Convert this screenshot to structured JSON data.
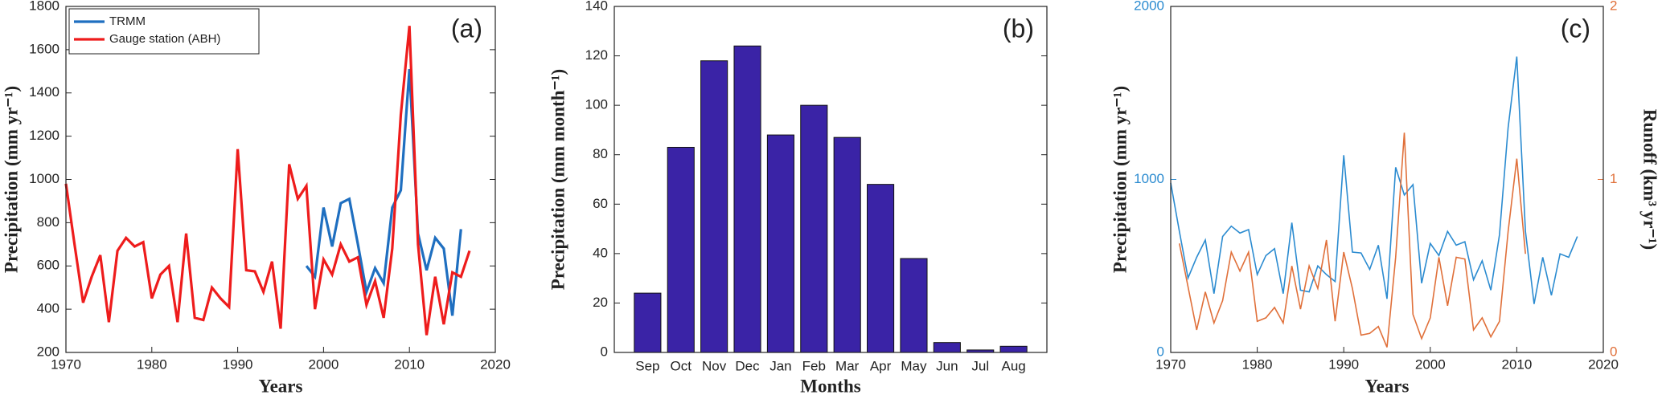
{
  "chart_data": [
    {
      "type": "line",
      "annotation": "(a)",
      "xlabel": "Years",
      "ylabel": "Precipitation (mm yr⁻¹)",
      "x": [
        1970,
        1971,
        1972,
        1973,
        1974,
        1975,
        1976,
        1977,
        1978,
        1979,
        1980,
        1981,
        1982,
        1983,
        1984,
        1985,
        1986,
        1987,
        1988,
        1989,
        1990,
        1991,
        1992,
        1993,
        1994,
        1995,
        1996,
        1997,
        1998,
        1999,
        2000,
        2001,
        2002,
        2003,
        2004,
        2005,
        2006,
        2007,
        2008,
        2009,
        2010,
        2011,
        2012,
        2013,
        2014,
        2015,
        2016,
        2017
      ],
      "series": [
        {
          "name": "TRMM",
          "color": "#1f6fc0",
          "values": [
            null,
            null,
            null,
            null,
            null,
            null,
            null,
            null,
            null,
            null,
            null,
            null,
            null,
            null,
            null,
            null,
            null,
            null,
            null,
            null,
            null,
            null,
            null,
            null,
            null,
            null,
            null,
            null,
            600,
            550,
            870,
            690,
            890,
            910,
            700,
            480,
            590,
            520,
            870,
            950,
            1510,
            750,
            580,
            730,
            680,
            370,
            770,
            null
          ]
        },
        {
          "name": "Gauge station (ABH)",
          "color": "#ee1c1c",
          "values": [
            980,
            700,
            430,
            550,
            650,
            340,
            670,
            730,
            690,
            710,
            450,
            560,
            600,
            340,
            750,
            360,
            350,
            500,
            450,
            410,
            1140,
            580,
            575,
            480,
            620,
            310,
            1070,
            910,
            970,
            400,
            630,
            560,
            700,
            620,
            640,
            420,
            530,
            360,
            680,
            1300,
            1710,
            700,
            280,
            550,
            330,
            570,
            550,
            670
          ]
        }
      ],
      "xlim": [
        1970,
        2020
      ],
      "xticks": [
        1970,
        1980,
        1990,
        2000,
        2010,
        2020
      ],
      "ylim": [
        200,
        1800
      ],
      "yticks": [
        200,
        400,
        600,
        800,
        1000,
        1200,
        1400,
        1600,
        1800
      ],
      "legend": "upper left"
    },
    {
      "type": "bar",
      "annotation": "(b)",
      "xlabel": "Months",
      "ylabel": "Precipitation (mm month⁻¹)",
      "categories": [
        "Sep",
        "Oct",
        "Nov",
        "Dec",
        "Jan",
        "Feb",
        "Mar",
        "Apr",
        "May",
        "Jun",
        "Jul",
        "Aug"
      ],
      "values": [
        24,
        83,
        118,
        124,
        88,
        100,
        87,
        68,
        38,
        4,
        1,
        2.5
      ],
      "color": "#3a23a6",
      "ylim": [
        0,
        140
      ],
      "yticks": [
        0,
        20,
        40,
        60,
        80,
        100,
        120,
        140
      ]
    },
    {
      "type": "line",
      "annotation": "(c)",
      "xlabel": "Years",
      "ylabel": "Precipitation (mm yr⁻¹)",
      "y2label": "Runoff (km³ yr⁻¹)",
      "x": [
        1970,
        1971,
        1972,
        1973,
        1974,
        1975,
        1976,
        1977,
        1978,
        1979,
        1980,
        1981,
        1982,
        1983,
        1984,
        1985,
        1986,
        1987,
        1988,
        1989,
        1990,
        1991,
        1992,
        1993,
        1994,
        1995,
        1996,
        1997,
        1998,
        1999,
        2000,
        2001,
        2002,
        2003,
        2004,
        2005,
        2006,
        2007,
        2008,
        2009,
        2010,
        2011,
        2012,
        2013,
        2014,
        2015,
        2016,
        2017
      ],
      "series": [
        {
          "color": "#2b8bd0",
          "values": [
            980,
            700,
            430,
            550,
            650,
            340,
            670,
            730,
            690,
            710,
            450,
            560,
            600,
            340,
            750,
            360,
            350,
            500,
            450,
            410,
            1140,
            580,
            575,
            480,
            620,
            310,
            1070,
            910,
            970,
            400,
            630,
            560,
            700,
            620,
            640,
            420,
            530,
            360,
            680,
            1300,
            1710,
            700,
            280,
            550,
            330,
            570,
            550,
            670
          ]
        },
        {
          "color": "#e0703a",
          "axis": "y2",
          "values": [
            null,
            0.63,
            0.38,
            0.13,
            0.35,
            0.17,
            0.3,
            0.58,
            0.47,
            0.58,
            0.18,
            0.2,
            0.26,
            0.17,
            0.5,
            0.25,
            0.5,
            0.37,
            0.65,
            0.18,
            0.58,
            0.37,
            0.1,
            0.11,
            0.15,
            0.03,
            0.55,
            1.27,
            0.22,
            0.08,
            0.2,
            0.55,
            0.27,
            0.55,
            0.54,
            0.13,
            0.2,
            0.09,
            0.18,
            0.7,
            1.12,
            0.57,
            null,
            null,
            null,
            null,
            null,
            null
          ]
        }
      ],
      "xlim": [
        1970,
        2020
      ],
      "xticks": [
        1970,
        1980,
        1990,
        2000,
        2010,
        2020
      ],
      "ylim": [
        0,
        2000
      ],
      "yticks": [
        0,
        1000,
        2000
      ],
      "y2lim": [
        0,
        2
      ],
      "y2ticks": [
        0,
        1,
        2
      ]
    }
  ]
}
